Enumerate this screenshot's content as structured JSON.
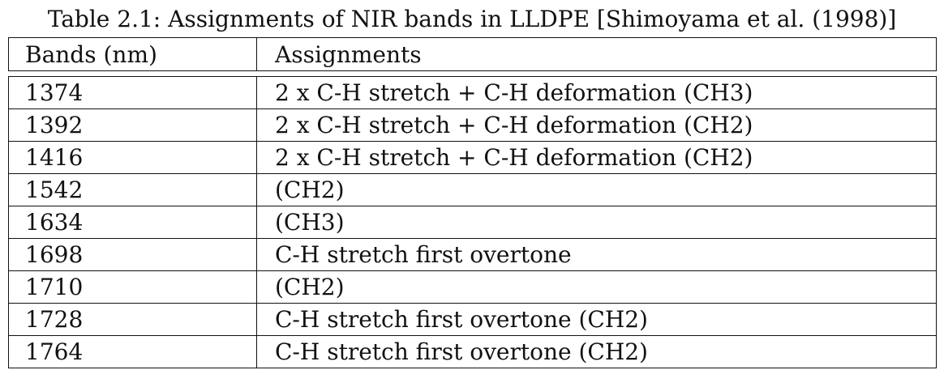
{
  "caption": "Table 2.1: Assignments of NIR bands in LLDPE [Shimoyama et al. (1998)]",
  "columns": [
    "Bands (nm)",
    "Assignments"
  ],
  "rows": [
    {
      "band": "1374",
      "assignment": "2 x C-H stretch + C-H deformation (CH3)"
    },
    {
      "band": "1392",
      "assignment": "2 x C-H stretch + C-H deformation (CH2)"
    },
    {
      "band": "1416",
      "assignment": "2 x C-H stretch + C-H deformation (CH2)"
    },
    {
      "band": "1542",
      "assignment": "(CH2)"
    },
    {
      "band": "1634",
      "assignment": "(CH3)"
    },
    {
      "band": "1698",
      "assignment": "C-H stretch first overtone"
    },
    {
      "band": "1710",
      "assignment": "(CH2)"
    },
    {
      "band": "1728",
      "assignment": "C-H stretch first overtone (CH2)"
    },
    {
      "band": "1764",
      "assignment": "C-H stretch first overtone (CH2)"
    }
  ]
}
